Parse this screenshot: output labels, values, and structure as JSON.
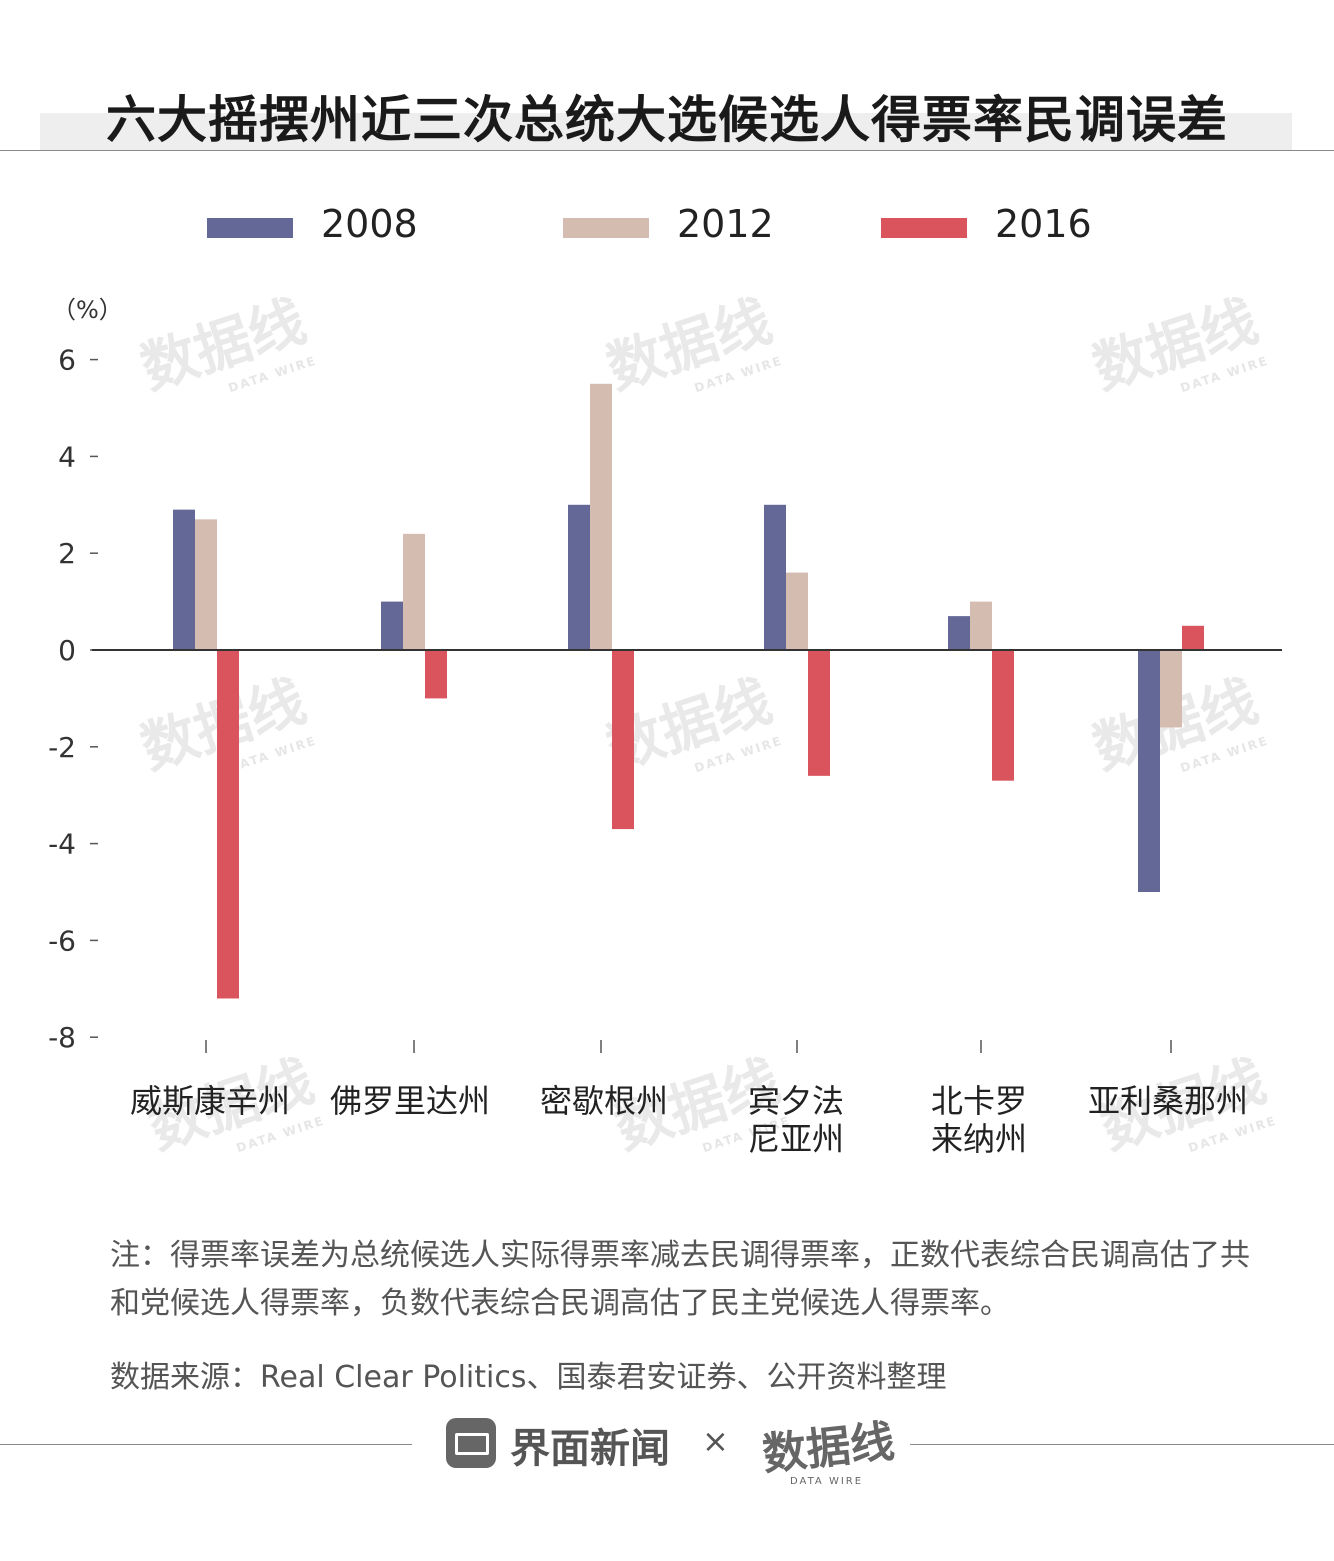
{
  "title": "六大摇摆州近三次总统大选候选人得票率民调误差",
  "unit_label": "（%）",
  "legend": [
    {
      "label": "2008",
      "color": "#646896"
    },
    {
      "label": "2012",
      "color": "#d4bcb1"
    },
    {
      "label": "2016",
      "color": "#d9545c"
    }
  ],
  "chart_data": {
    "type": "bar",
    "title": "六大摇摆州近三次总统大选候选人得票率民调误差",
    "ylabel": "（%）",
    "ylim": [
      -8,
      6
    ],
    "yticks": [
      6,
      4,
      2,
      0,
      -2,
      -4,
      -6,
      -8
    ],
    "categories": [
      [
        "威斯康辛州"
      ],
      [
        "佛罗里达州"
      ],
      [
        "密歇根州"
      ],
      [
        "宾夕法",
        "尼亚州"
      ],
      [
        "北卡罗",
        "来纳州"
      ],
      [
        "亚利桑那州"
      ]
    ],
    "series": [
      {
        "name": "2008",
        "color": "#646896",
        "values": [
          2.9,
          1.0,
          3.0,
          3.0,
          0.7,
          -5.0
        ]
      },
      {
        "name": "2012",
        "color": "#d4bcb1",
        "values": [
          2.7,
          2.4,
          5.5,
          1.6,
          1.0,
          -1.6
        ]
      },
      {
        "name": "2016",
        "color": "#d9545c",
        "values": [
          -7.2,
          -1.0,
          -3.7,
          -2.6,
          -2.7,
          0.5
        ]
      }
    ]
  },
  "note": "注：得票率误差为总统候选人实际得票率减去民调得票率，正数代表综合民调高估了共和党候选人得票率，负数代表综合民调高估了民主党候选人得票率。",
  "source": "数据来源：Real Clear Politics、国泰君安证券、公开资料整理",
  "footer": {
    "brand": "界面新闻",
    "separator": "×",
    "partner": "数据线",
    "partner_sub": "DATA WIRE"
  },
  "watermark": {
    "text": "数据线",
    "sub": "DATA WIRE"
  }
}
